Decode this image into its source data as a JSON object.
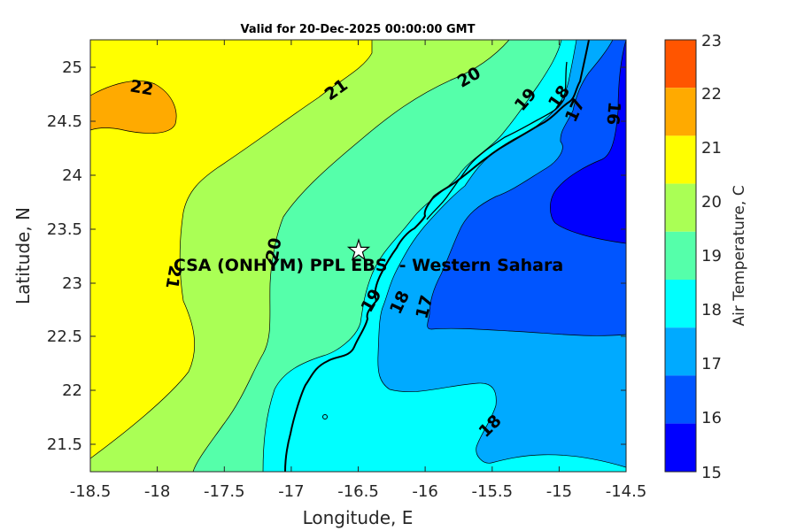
{
  "title": "Valid for 20-Dec-2025 00:00:00 GMT",
  "x_axis": {
    "label": "Longitude, E",
    "ticks": [
      "-18.5",
      "-18",
      "-17.5",
      "-17",
      "-16.5",
      "-16",
      "-15.5",
      "-15",
      "-14.5"
    ]
  },
  "y_axis": {
    "label": "Latitude, N",
    "ticks": [
      "25",
      "24.5",
      "24",
      "23.5",
      "23",
      "22.5",
      "22",
      "21.5"
    ]
  },
  "colorbar": {
    "label": "Air Temperature, C",
    "ticks": [
      "23",
      "22",
      "21",
      "20",
      "19",
      "18",
      "17",
      "16",
      "15"
    ],
    "colors": [
      "#ff5500",
      "#ffaa00",
      "#ffff00",
      "#aaff55",
      "#55ffaa",
      "#00ffff",
      "#00aaff",
      "#0055ff",
      "#0000ff"
    ]
  },
  "fill_colors": {
    "c15": "#0000ff",
    "c16": "#0055ff",
    "c17": "#00aaff",
    "c18": "#00ffff",
    "c19": "#55ffaa",
    "c20": "#aaff55",
    "c21": "#ffff00",
    "c22": "#ffaa00"
  },
  "contour_labels": {
    "l22": "22",
    "l21_top": "21",
    "l20_top": "20",
    "l19_top": "19",
    "l18_top": "18",
    "l17_top": "17",
    "l16_top": "16",
    "l21_left": "21",
    "l20_mid": "20",
    "l19_mid": "19",
    "l18_mid": "18",
    "l17_mid": "17",
    "l18_bottom": "18"
  },
  "station": {
    "label": "CSA (ONHYM) PPL EBS  - Western Sahara",
    "marker": "star-icon"
  }
}
